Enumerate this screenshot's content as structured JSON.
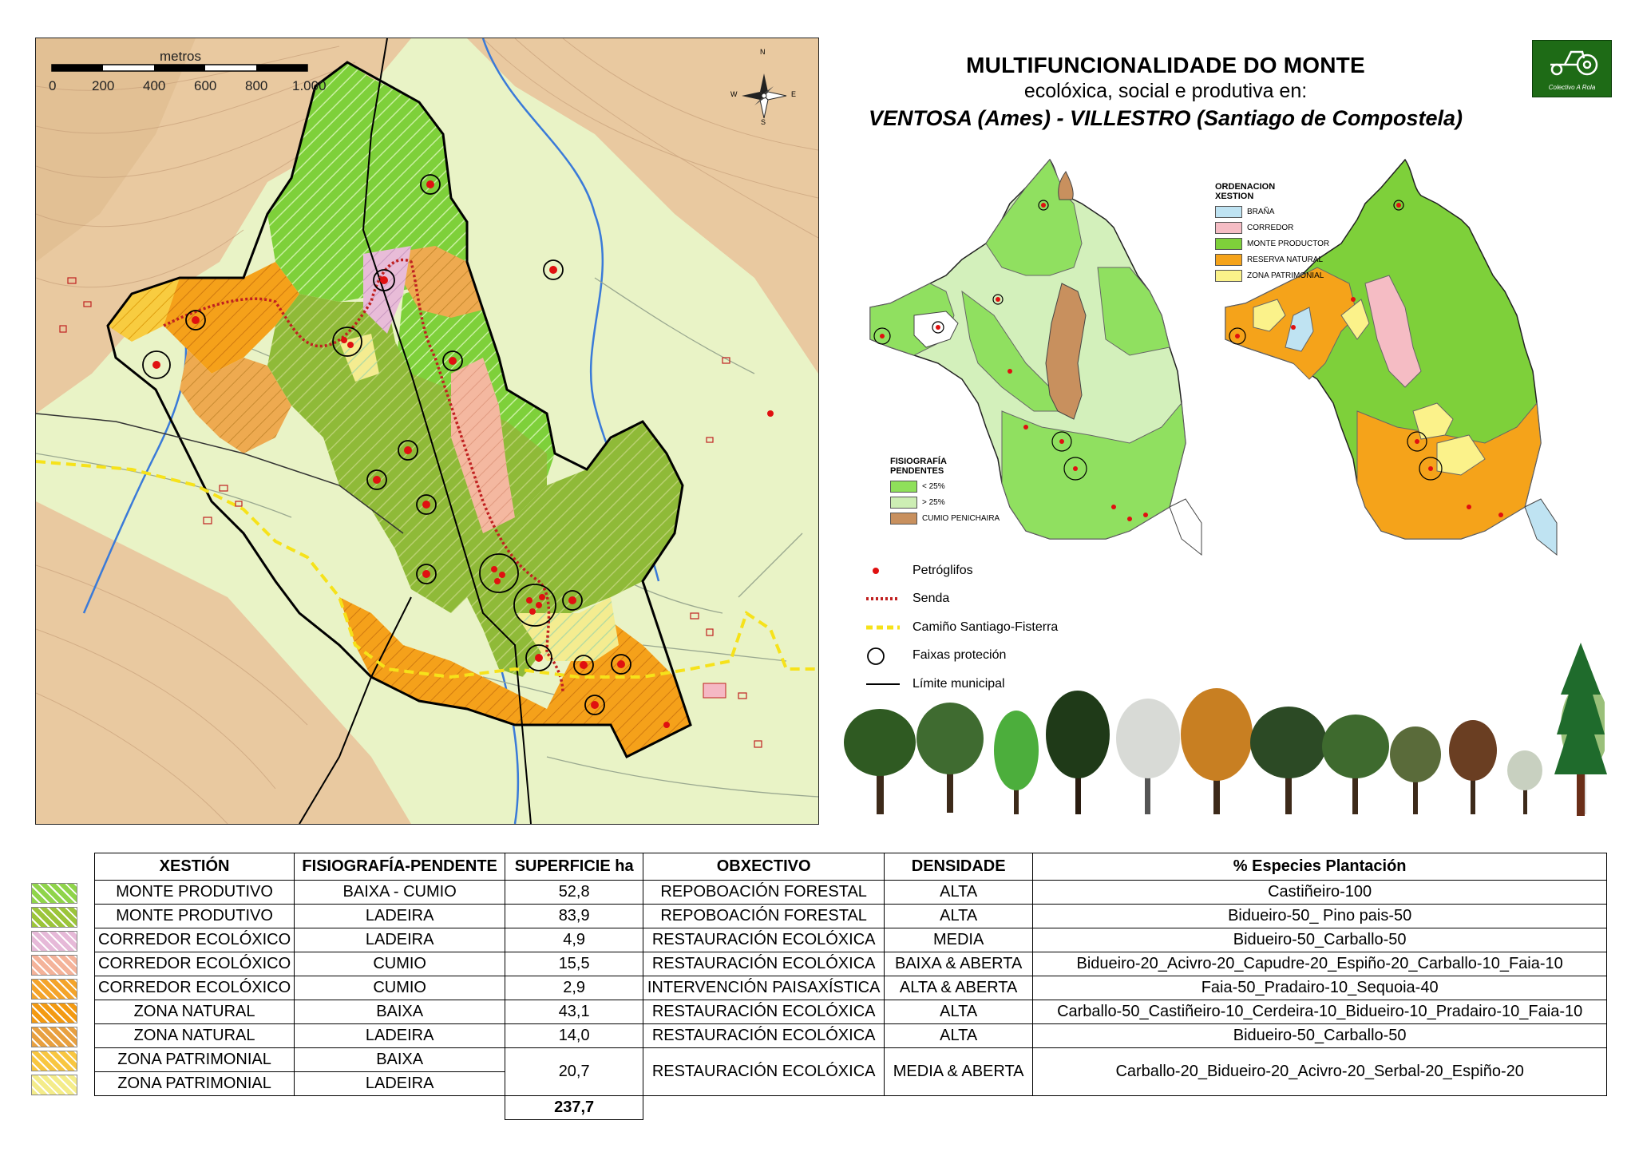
{
  "title": {
    "line1": "MULTIFUNCIONALIDADE DO MONTE",
    "line2": "ecolóxica, social e produtiva en:",
    "line3": "VENTOSA (Ames) - VILLESTRO (Santiago de Compostela)"
  },
  "logo": {
    "text": "Colectivo A Rola",
    "icon": "tractor-icon"
  },
  "scale_bar": {
    "unit_label": "metros",
    "ticks": [
      "0",
      "200",
      "400",
      "600",
      "800",
      "1.000"
    ]
  },
  "compass": {
    "icon": "compass-rose-icon",
    "n": "N",
    "s": "S",
    "e": "E",
    "w": "W"
  },
  "legend": [
    {
      "label": "Petróglifos",
      "icon": "red-dot-icon"
    },
    {
      "label": "Senda",
      "icon": "dotted-red-line-icon"
    },
    {
      "label": "Camiño Santiago-Fisterra",
      "icon": "dashed-yellow-line-icon"
    },
    {
      "label": "Faixas proteción",
      "icon": "circle-outline-icon"
    },
    {
      "label": "Límite municipal",
      "icon": "black-line-icon"
    }
  ],
  "fisiografia_legend": {
    "title": "FISIOGRAFÍA",
    "subtitle": "PENDENTES",
    "items": [
      {
        "label": "< 25%",
        "color": "#8fe05a"
      },
      {
        "label": "> 25%",
        "color": "#cdeeb4"
      },
      {
        "label": "CUMIO PENICHAIRA",
        "color": "#c8905e"
      }
    ]
  },
  "ordenacion_legend": {
    "title": "ORDENACION",
    "subtitle": "XESTION",
    "items": [
      {
        "label": "BRAÑA",
        "color": "#bfe3f2"
      },
      {
        "label": "CORREDOR",
        "color": "#f5bcc4"
      },
      {
        "label": "MONTE PRODUCTOR",
        "color": "#7ed03a"
      },
      {
        "label": "RESERVA NATURAL",
        "color": "#f5a31a"
      },
      {
        "label": "ZONA PATRIMONIAL",
        "color": "#fbf28a"
      }
    ]
  },
  "table": {
    "headers": [
      "XESTIÓN",
      "FISIOGRAFÍA-PENDENTE",
      "SUPERFICIE ha",
      "OBXECTIVO",
      "DENSIDADE",
      "% Especies Plantación"
    ],
    "rows": [
      {
        "xestion": "MONTE PRODUTIVO",
        "fisiografia": "BAIXA - CUMIO",
        "superficie": "52,8",
        "obxectivo": "REPOBOACIÓN FORESTAL",
        "densidade": "ALTA",
        "especies": "Castiñeiro-100",
        "swatch": "#8fd44a"
      },
      {
        "xestion": "MONTE PRODUTIVO",
        "fisiografia": "LADEIRA",
        "superficie": "83,9",
        "obxectivo": "REPOBOACIÓN FORESTAL",
        "densidade": "ALTA",
        "especies": "Bidueiro-50_ Pino pais-50",
        "swatch": "#9cc53a"
      },
      {
        "xestion": "CORREDOR ECOLÓXICO",
        "fisiografia": "LADEIRA",
        "superficie": "4,9",
        "obxectivo": "RESTAURACIÓN ECOLÓXICA",
        "densidade": "MEDIA",
        "especies": "Bidueiro-50_Carballo-50",
        "swatch": "#e6b9d8"
      },
      {
        "xestion": "CORREDOR ECOLÓXICO",
        "fisiografia": "CUMIO",
        "superficie": "15,5",
        "obxectivo": "RESTAURACIÓN ECOLÓXICA",
        "densidade": "BAIXA & ABERTA",
        "especies": "Bidueiro-20_Acivro-20_Capudre-20_Espiño-20_Carballo-10_Faia-10",
        "swatch": "#f4b39a"
      },
      {
        "xestion": "CORREDOR ECOLÓXICO",
        "fisiografia": "CUMIO",
        "superficie": "2,9",
        "obxectivo": "INTERVENCIÓN PAISAXÍSTICA",
        "densidade": "ALTA & ABERTA",
        "especies": "Faia-50_Pradairo-10_Sequoia-40",
        "swatch": "#f4a42a"
      },
      {
        "xestion": "ZONA NATURAL",
        "fisiografia": "BAIXA",
        "superficie": "43,1",
        "obxectivo": "RESTAURACIÓN ECOLÓXICA",
        "densidade": "ALTA",
        "especies": "Carballo-50_Castiñeiro-10_Cerdeira-10_Bidueiro-10_Pradairo-10_Faia-10",
        "swatch": "#f39a12"
      },
      {
        "xestion": "ZONA NATURAL",
        "fisiografia": "LADEIRA",
        "superficie": "14,0",
        "obxectivo": "RESTAURACIÓN ECOLÓXICA",
        "densidade": "ALTA",
        "especies": "Bidueiro-50_Carballo-50",
        "swatch": "#e8a040"
      },
      {
        "xestion": "ZONA PATRIMONIAL",
        "fisiografia": "BAIXA",
        "superficie": "20,7",
        "obxectivo": "RESTAURACIÓN ECOLÓXICA",
        "densidade": "MEDIA & ABERTA",
        "especies": "Carballo-20_Bidueiro-20_Acivro-20_Serbal-20_Espiño-20",
        "swatch": "#f8c640"
      },
      {
        "xestion": "ZONA PATRIMONIAL",
        "fisiografia": "LADEIRA",
        "swatch": "#f4ec8a"
      }
    ],
    "total": "237,7"
  },
  "trees": [
    "oak-tree-icon",
    "round-tree-icon",
    "conifer-tree-icon",
    "dark-tree-icon",
    "white-tree-icon",
    "autumn-tree-icon",
    "spreading-tree-icon",
    "broad-tree-icon",
    "flowering-tree-icon",
    "red-tree-icon",
    "small-bush-icon",
    "birch-tree-icon",
    "sequoia-tree-icon"
  ]
}
